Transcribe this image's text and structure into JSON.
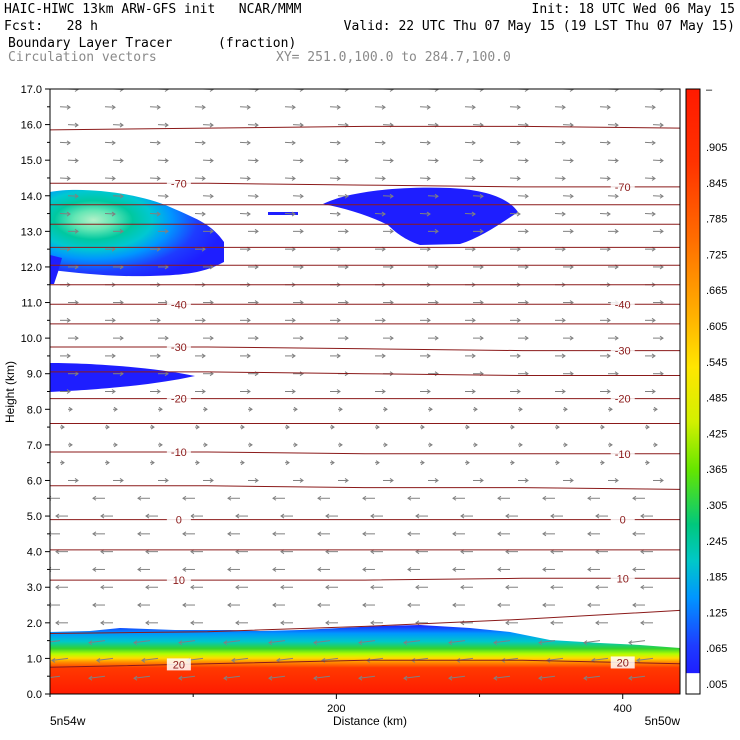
{
  "header": {
    "line1_left": "HAIC-HIWC 13km ARW-GFS init   NCAR/MMM",
    "line1_right": "Init: 18 UTC Wed 06 May 15",
    "line2_left": "Fcst:   28 h",
    "line2_right": "Valid: 22 UTC Thu 07 May 15 (19 LST Thu 07 May 15)",
    "field_name": "Boundary Layer Tracer",
    "field_units": "(fraction)",
    "overlay_name": "Circulation vectors",
    "cross_section": "XY= 251.0,100.0 to 284.7,100.0"
  },
  "colors": {
    "contour_line": "#8b1a1a",
    "vector": "#808080",
    "frame": "#000000"
  },
  "chart_data": {
    "type": "heatmap",
    "title": "Boundary Layer Tracer",
    "xlabel": "Distance (km)",
    "ylabel": "Height (km)",
    "xlim": [
      0,
      440
    ],
    "ylim": [
      0,
      17
    ],
    "x_ticks": [
      {
        "value": 200,
        "label": "200"
      },
      {
        "value": 400,
        "label": "400"
      }
    ],
    "x_end_labels": {
      "left": "5n54w",
      "right": "5n50w"
    },
    "y_ticks": [
      {
        "value": 0,
        "label": "0.0"
      },
      {
        "value": 1,
        "label": "1.0"
      },
      {
        "value": 2,
        "label": "2.0"
      },
      {
        "value": 3,
        "label": "3.0"
      },
      {
        "value": 4,
        "label": "4.0"
      },
      {
        "value": 5,
        "label": "5.0"
      },
      {
        "value": 6,
        "label": "6.0"
      },
      {
        "value": 7,
        "label": "7.0"
      },
      {
        "value": 8,
        "label": "8.0"
      },
      {
        "value": 9,
        "label": "9.0"
      },
      {
        "value": 10,
        "label": "10.0"
      },
      {
        "value": 11,
        "label": "11.0"
      },
      {
        "value": 12,
        "label": "12.0"
      },
      {
        "value": 13,
        "label": "13.0"
      },
      {
        "value": 14,
        "label": "14.0"
      },
      {
        "value": 15,
        "label": "15.0"
      },
      {
        "value": 16,
        "label": "16.0"
      },
      {
        "value": 17,
        "label": "17.0"
      }
    ],
    "colorbar": {
      "top_label": "–",
      "labels": [
        ".905",
        ".845",
        ".785",
        ".725",
        ".665",
        ".605",
        ".545",
        ".485",
        ".425",
        ".365",
        ".305",
        ".245",
        ".185",
        ".125",
        ".065",
        ".005"
      ],
      "colors": [
        "#ff1a00",
        "#ff2a00",
        "#ff3a00",
        "#ff4f00",
        "#ff6400",
        "#ff7800",
        "#ff8c00",
        "#ffa000",
        "#ffb400",
        "#ffc800",
        "#ffdc00",
        "#fff000",
        "#f0f000",
        "#d2f000",
        "#b4ff00",
        "#8cf000",
        "#64e600",
        "#32d232",
        "#00c864",
        "#00c896",
        "#00c8c8",
        "#00b4e6",
        "#0096ff",
        "#0078ff",
        "#005aff",
        "#003cff",
        "#1e1eff",
        "#3c3cff",
        "#ffffff"
      ]
    },
    "isotherms": [
      {
        "label": "20",
        "heights": [
          0.75,
          0.85,
          0.95,
          0.95,
          0.85
        ]
      },
      {
        "label": "",
        "heights": [
          1.7,
          1.75,
          1.9,
          2.1,
          2.35
        ]
      },
      {
        "label": "10",
        "heights": [
          3.2,
          3.2,
          3.2,
          3.25,
          3.25
        ]
      },
      {
        "label": "",
        "heights": [
          4.05,
          4.05,
          4.05,
          4.05,
          4.05
        ]
      },
      {
        "label": "0",
        "heights": [
          4.9,
          4.9,
          4.9,
          4.9,
          4.9
        ]
      },
      {
        "label": "",
        "heights": [
          5.85,
          5.85,
          5.8,
          5.8,
          5.75
        ]
      },
      {
        "label": "-10",
        "heights": [
          6.8,
          6.8,
          6.75,
          6.75,
          6.75
        ]
      },
      {
        "label": "",
        "heights": [
          7.6,
          7.6,
          7.6,
          7.6,
          7.6
        ]
      },
      {
        "label": "-20",
        "heights": [
          8.3,
          8.3,
          8.3,
          8.3,
          8.3
        ]
      },
      {
        "label": "",
        "heights": [
          9.05,
          9.05,
          9.0,
          8.95,
          8.95
        ]
      },
      {
        "label": "-30",
        "heights": [
          9.75,
          9.75,
          9.7,
          9.65,
          9.65
        ]
      },
      {
        "label": "",
        "heights": [
          10.4,
          10.4,
          10.4,
          10.4,
          10.4
        ]
      },
      {
        "label": "-40",
        "heights": [
          10.95,
          10.95,
          10.95,
          10.95,
          10.95
        ]
      },
      {
        "label": "",
        "heights": [
          11.5,
          11.5,
          11.5,
          11.5,
          11.5
        ]
      },
      {
        "label": "",
        "heights": [
          12.05,
          12.05,
          12.05,
          12.05,
          12.05
        ]
      },
      {
        "label": "",
        "heights": [
          12.55,
          12.55,
          12.55,
          12.55,
          12.55
        ]
      },
      {
        "label": "",
        "heights": [
          13.2,
          13.2,
          13.2,
          13.2,
          13.2
        ]
      },
      {
        "label": "",
        "heights": [
          13.75,
          13.75,
          13.75,
          13.75,
          13.75
        ]
      },
      {
        "label": "-70",
        "heights": [
          14.35,
          14.35,
          14.3,
          14.25,
          14.25
        ]
      },
      {
        "label": "",
        "heights": [
          15.85,
          15.9,
          15.95,
          15.95,
          15.9
        ]
      }
    ],
    "isotherm_x": [
      0,
      110,
      220,
      330,
      440
    ]
  }
}
